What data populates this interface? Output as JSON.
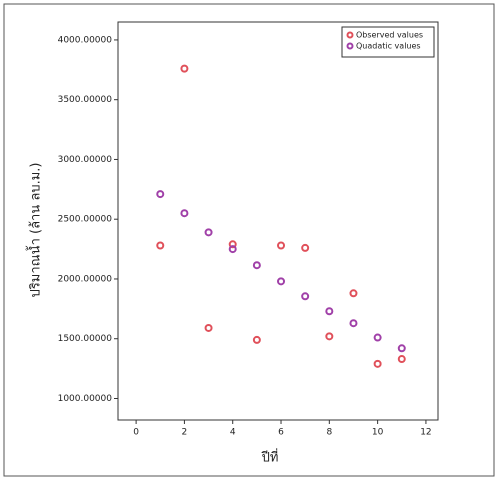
{
  "chart_data": {
    "type": "scatter",
    "x_label": "ปีที่",
    "y_label": "ปริมาณน้ำ (ล้าน ลบ.ม.)",
    "xlim": [
      -0.75,
      12.5
    ],
    "ylim": [
      820,
      4150
    ],
    "xticks": [
      0,
      2,
      4,
      6,
      8,
      10,
      12
    ],
    "yticks": [
      {
        "value": 1000,
        "label": "1000.00000"
      },
      {
        "value": 1500,
        "label": "1500.00000"
      },
      {
        "value": 2000,
        "label": "2000.00000"
      },
      {
        "value": 2500,
        "label": "2500.00000"
      },
      {
        "value": 3000,
        "label": "3000.00000"
      },
      {
        "value": 3500,
        "label": "3500.00000"
      },
      {
        "value": 4000,
        "label": "4000.00000"
      }
    ],
    "legend_position": "upper right",
    "series": [
      {
        "name": "Observed values",
        "color": "#e0505a",
        "x": [
          1,
          2,
          3,
          4,
          5,
          6,
          7,
          8,
          9,
          10,
          11
        ],
        "values": [
          2280,
          3760,
          1590,
          2290,
          1490,
          2280,
          2260,
          1520,
          1880,
          1290,
          1330
        ]
      },
      {
        "name": "Quadatic values",
        "color": "#a040a8",
        "x": [
          1,
          2,
          3,
          4,
          5,
          6,
          7,
          8,
          9,
          10,
          11
        ],
        "values": [
          2710,
          2550,
          2390,
          2250,
          2115,
          1980,
          1855,
          1730,
          1630,
          1510,
          1420
        ]
      }
    ]
  }
}
